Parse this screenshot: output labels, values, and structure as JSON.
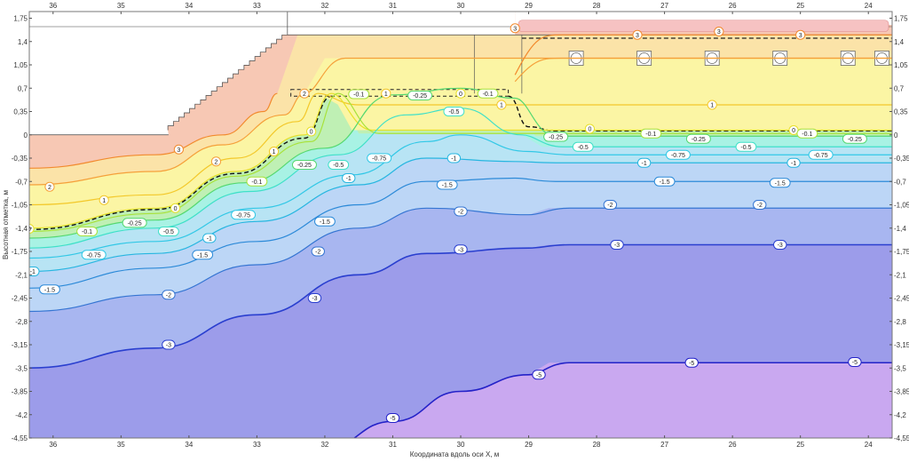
{
  "chart_data": {
    "type": "contour",
    "xlabel": "Координата вдоль оси X, м",
    "ylabel": "Высотная отметка, м",
    "xlim": [
      36.35,
      23.65
    ],
    "ylim": [
      -4.55,
      1.85
    ],
    "x_ticks": [
      36,
      35,
      34,
      33,
      32,
      31,
      30,
      29,
      28,
      27,
      26,
      25,
      24
    ],
    "y_ticks": [
      "1,75",
      "1,4",
      "1,05",
      "0,7",
      "0,35",
      "0",
      "-0,35",
      "-0,7",
      "-1,05",
      "-1,4",
      "-1,75",
      "-2,1",
      "-2,45",
      "-2,8",
      "-3,15",
      "-3,5",
      "-3,85",
      "-4,2",
      "-4,55"
    ],
    "y_tick_values": [
      1.75,
      1.4,
      1.05,
      0.7,
      0.35,
      0,
      -0.35,
      -0.7,
      -1.05,
      -1.4,
      -1.75,
      -2.1,
      -2.45,
      -2.8,
      -3.15,
      -3.5,
      -3.85,
      -4.2,
      -4.55
    ],
    "ground_level": 0,
    "embankment_top": 1.5,
    "footing": {
      "x_from": 32.5,
      "x_to": 29.3,
      "top": 0.68,
      "bottom": 0.58
    },
    "right_slab_top": 1.5,
    "piles_x": [
      28.3,
      27.3,
      26.3,
      25.3,
      24.3,
      23.8
    ],
    "piles_y": 1.15,
    "isolines": [
      {
        "level": "3",
        "color": "#f28a2e",
        "points": [
          [
            36.35,
            -0.5
          ],
          [
            34.5,
            -0.3
          ],
          [
            33.5,
            0
          ],
          [
            32.9,
            0.35
          ],
          [
            32.7,
            0.62
          ]
        ],
        "labels": [
          [
            34.15,
            -0.22
          ]
        ]
      },
      {
        "level": "2",
        "color": "#f5a03a",
        "points": [
          [
            36.35,
            -0.75
          ],
          [
            34.5,
            -0.55
          ],
          [
            33.5,
            -0.15
          ],
          [
            32.6,
            0.3
          ],
          [
            32.3,
            0.62
          ]
        ],
        "labels": [
          [
            36.05,
            -0.78
          ],
          [
            33.6,
            -0.4
          ],
          [
            32.3,
            0.62
          ]
        ]
      },
      {
        "level": "1",
        "color": "#f3c82a",
        "points": [
          [
            36.35,
            -1.05
          ],
          [
            34.5,
            -0.9
          ],
          [
            33.3,
            -0.35
          ],
          [
            32.4,
            0.2
          ],
          [
            32.1,
            0.62
          ]
        ],
        "labels": [
          [
            35.25,
            -0.98
          ],
          [
            32.75,
            -0.25
          ],
          [
            31.1,
            0.62
          ]
        ]
      },
      {
        "level": "0",
        "color": "#e8e02a",
        "points": [
          [
            36.35,
            -1.4
          ],
          [
            34.5,
            -1.1
          ],
          [
            33.3,
            -0.55
          ],
          [
            32.3,
            0.0
          ],
          [
            31.9,
            0.62
          ]
        ],
        "labels": [
          [
            36.35,
            -1.41
          ],
          [
            34.2,
            -1.1
          ],
          [
            32.2,
            0.05
          ],
          [
            30.0,
            0.62
          ]
        ]
      },
      {
        "level": "-0.1",
        "color": "#a8e23a",
        "points": [
          [
            36.35,
            -1.45
          ],
          [
            34.5,
            -1.18
          ],
          [
            33.3,
            -0.62
          ],
          [
            32.2,
            -0.1
          ],
          [
            31.8,
            0.62
          ]
        ],
        "labels": [
          [
            35.5,
            -1.45
          ],
          [
            33.0,
            -0.7
          ],
          [
            31.5,
            0.61
          ],
          [
            29.6,
            0.62
          ]
        ]
      },
      {
        "level": "-0.25",
        "color": "#55d870",
        "points": [
          [
            36.35,
            -1.55
          ],
          [
            34.5,
            -1.28
          ],
          [
            33.2,
            -0.72
          ],
          [
            32.0,
            -0.2
          ],
          [
            31.0,
            0.6
          ],
          [
            30.0,
            0.7
          ],
          [
            29.2,
            0.55
          ]
        ],
        "labels": [
          [
            34.8,
            -1.32
          ],
          [
            32.3,
            -0.45
          ],
          [
            30.6,
            0.59
          ]
        ]
      },
      {
        "level": "-0.5",
        "color": "#3fe0c8",
        "points": [
          [
            36.35,
            -1.7
          ],
          [
            34.5,
            -1.4
          ],
          [
            33.1,
            -0.85
          ],
          [
            31.8,
            -0.3
          ],
          [
            30.8,
            0.3
          ],
          [
            30.0,
            0.4
          ],
          [
            29.1,
            0.0
          ]
        ],
        "labels": [
          [
            34.3,
            -1.45
          ],
          [
            31.8,
            -0.45
          ],
          [
            30.1,
            0.35
          ]
        ]
      },
      {
        "level": "-0.75",
        "color": "#32c8e6",
        "points": [
          [
            36.35,
            -1.85
          ],
          [
            34.5,
            -1.6
          ],
          [
            33.0,
            -1.1
          ],
          [
            31.6,
            -0.6
          ],
          [
            30.5,
            -0.1
          ],
          [
            30.0,
            0.0
          ],
          [
            29.0,
            -0.25
          ]
        ],
        "labels": [
          [
            35.4,
            -1.8
          ],
          [
            33.2,
            -1.2
          ],
          [
            31.2,
            -0.35
          ]
        ]
      },
      {
        "level": "-1",
        "color": "#27b6e0",
        "points": [
          [
            36.35,
            -2.05
          ],
          [
            34.5,
            -1.78
          ],
          [
            33.0,
            -1.3
          ],
          [
            31.5,
            -0.75
          ],
          [
            30.5,
            -0.35
          ],
          [
            29.2,
            -0.4
          ]
        ],
        "labels": [
          [
            36.3,
            -2.05
          ],
          [
            33.7,
            -1.55
          ],
          [
            31.65,
            -0.65
          ],
          [
            30.1,
            -0.35
          ]
        ]
      },
      {
        "level": "-1.5",
        "color": "#2c8ad8",
        "points": [
          [
            36.35,
            -2.3
          ],
          [
            34.5,
            -2.0
          ],
          [
            33.0,
            -1.6
          ],
          [
            31.5,
            -1.05
          ],
          [
            30.5,
            -0.7
          ],
          [
            29.2,
            -0.65
          ]
        ],
        "labels": [
          [
            36.05,
            -2.32
          ],
          [
            33.8,
            -1.8
          ],
          [
            32.0,
            -1.3
          ],
          [
            30.2,
            -0.75
          ]
        ]
      },
      {
        "level": "-2",
        "color": "#3575d2",
        "points": [
          [
            36.35,
            -2.65
          ],
          [
            34.5,
            -2.4
          ],
          [
            33.0,
            -1.95
          ],
          [
            31.5,
            -1.4
          ],
          [
            30.5,
            -1.1
          ],
          [
            29.0,
            -1.2
          ]
        ],
        "labels": [
          [
            34.3,
            -2.4
          ],
          [
            32.1,
            -1.75
          ],
          [
            30.0,
            -1.15
          ]
        ]
      },
      {
        "level": "-3",
        "color": "#2a3fcf",
        "points": [
          [
            36.35,
            -3.5
          ],
          [
            34.5,
            -3.2
          ],
          [
            33.0,
            -2.7
          ],
          [
            31.5,
            -2.1
          ],
          [
            30.5,
            -1.78
          ],
          [
            29.0,
            -1.7
          ]
        ],
        "labels": [
          [
            34.3,
            -3.15
          ],
          [
            32.15,
            -2.45
          ],
          [
            30.0,
            -1.72
          ]
        ]
      },
      {
        "level": "-5",
        "color": "#2422c8",
        "points": [
          [
            32.0,
            -4.7
          ],
          [
            31.0,
            -4.3
          ],
          [
            30.0,
            -3.85
          ],
          [
            29.0,
            -3.6
          ]
        ],
        "labels": [
          [
            31.0,
            -4.25
          ],
          [
            28.85,
            -3.6
          ]
        ]
      }
    ],
    "right_isolines": [
      {
        "level": "3",
        "color": "#f28a2e",
        "y": 1.5,
        "labels": [
          [
            29.2,
            1.6
          ],
          [
            27.4,
            1.5
          ],
          [
            26.2,
            1.55
          ],
          [
            25.0,
            1.5
          ]
        ]
      },
      {
        "level": "2",
        "color": "#f5a03a",
        "y": 1.15
      },
      {
        "level": "1",
        "color": "#f3c82a",
        "y": 0.45,
        "labels": [
          [
            29.4,
            0.45
          ],
          [
            26.3,
            0.45
          ]
        ]
      },
      {
        "level": "0",
        "color": "#e8e02a",
        "y": 0.07,
        "labels": [
          [
            28.1,
            0.09
          ],
          [
            25.1,
            0.07
          ]
        ]
      },
      {
        "level": "-0.1",
        "color": "#a8e23a",
        "y": 0.02,
        "labels": [
          [
            27.2,
            0.02
          ],
          [
            24.9,
            0.02
          ]
        ]
      },
      {
        "level": "-0.25",
        "color": "#55d870",
        "y": -0.02,
        "labels": [
          [
            28.6,
            -0.03
          ],
          [
            26.5,
            -0.06
          ],
          [
            24.2,
            -0.06
          ]
        ]
      },
      {
        "level": "-0.5",
        "color": "#3fe0c8",
        "y": -0.18,
        "labels": [
          [
            28.2,
            -0.18
          ],
          [
            25.8,
            -0.18
          ]
        ]
      },
      {
        "level": "-0.75",
        "color": "#32c8e6",
        "y": -0.3,
        "labels": [
          [
            26.8,
            -0.3
          ],
          [
            24.7,
            -0.3
          ]
        ]
      },
      {
        "level": "-1",
        "color": "#27b6e0",
        "y": -0.42,
        "labels": [
          [
            27.3,
            -0.42
          ],
          [
            25.1,
            -0.42
          ]
        ]
      },
      {
        "level": "-1.5",
        "color": "#2c8ad8",
        "y": -0.7,
        "labels": [
          [
            27.0,
            -0.7
          ],
          [
            25.3,
            -0.72
          ]
        ]
      },
      {
        "level": "-2",
        "color": "#3575d2",
        "y": -1.1,
        "labels": [
          [
            27.8,
            -1.05
          ],
          [
            25.6,
            -1.05
          ]
        ]
      },
      {
        "level": "-3",
        "color": "#2a3fcf",
        "y": -1.65,
        "labels": [
          [
            27.7,
            -1.65
          ],
          [
            25.3,
            -1.65
          ]
        ]
      },
      {
        "level": "-5",
        "color": "#2422c8",
        "y": -3.42,
        "labels": [
          [
            26.6,
            -3.42
          ],
          [
            24.2,
            -3.41
          ]
        ]
      }
    ],
    "bands": [
      {
        "color": "#f7c8b4"
      },
      {
        "color": "#fbe3a8"
      },
      {
        "color": "#fbf5a4"
      },
      {
        "color": "#bff0b4"
      },
      {
        "color": "#a8f2e4"
      },
      {
        "color": "#b8e4f4"
      },
      {
        "color": "#bcd6f6"
      },
      {
        "color": "#a8b6f0"
      },
      {
        "color": "#9c9cea"
      },
      {
        "color": "#c9a8f0"
      }
    ]
  }
}
